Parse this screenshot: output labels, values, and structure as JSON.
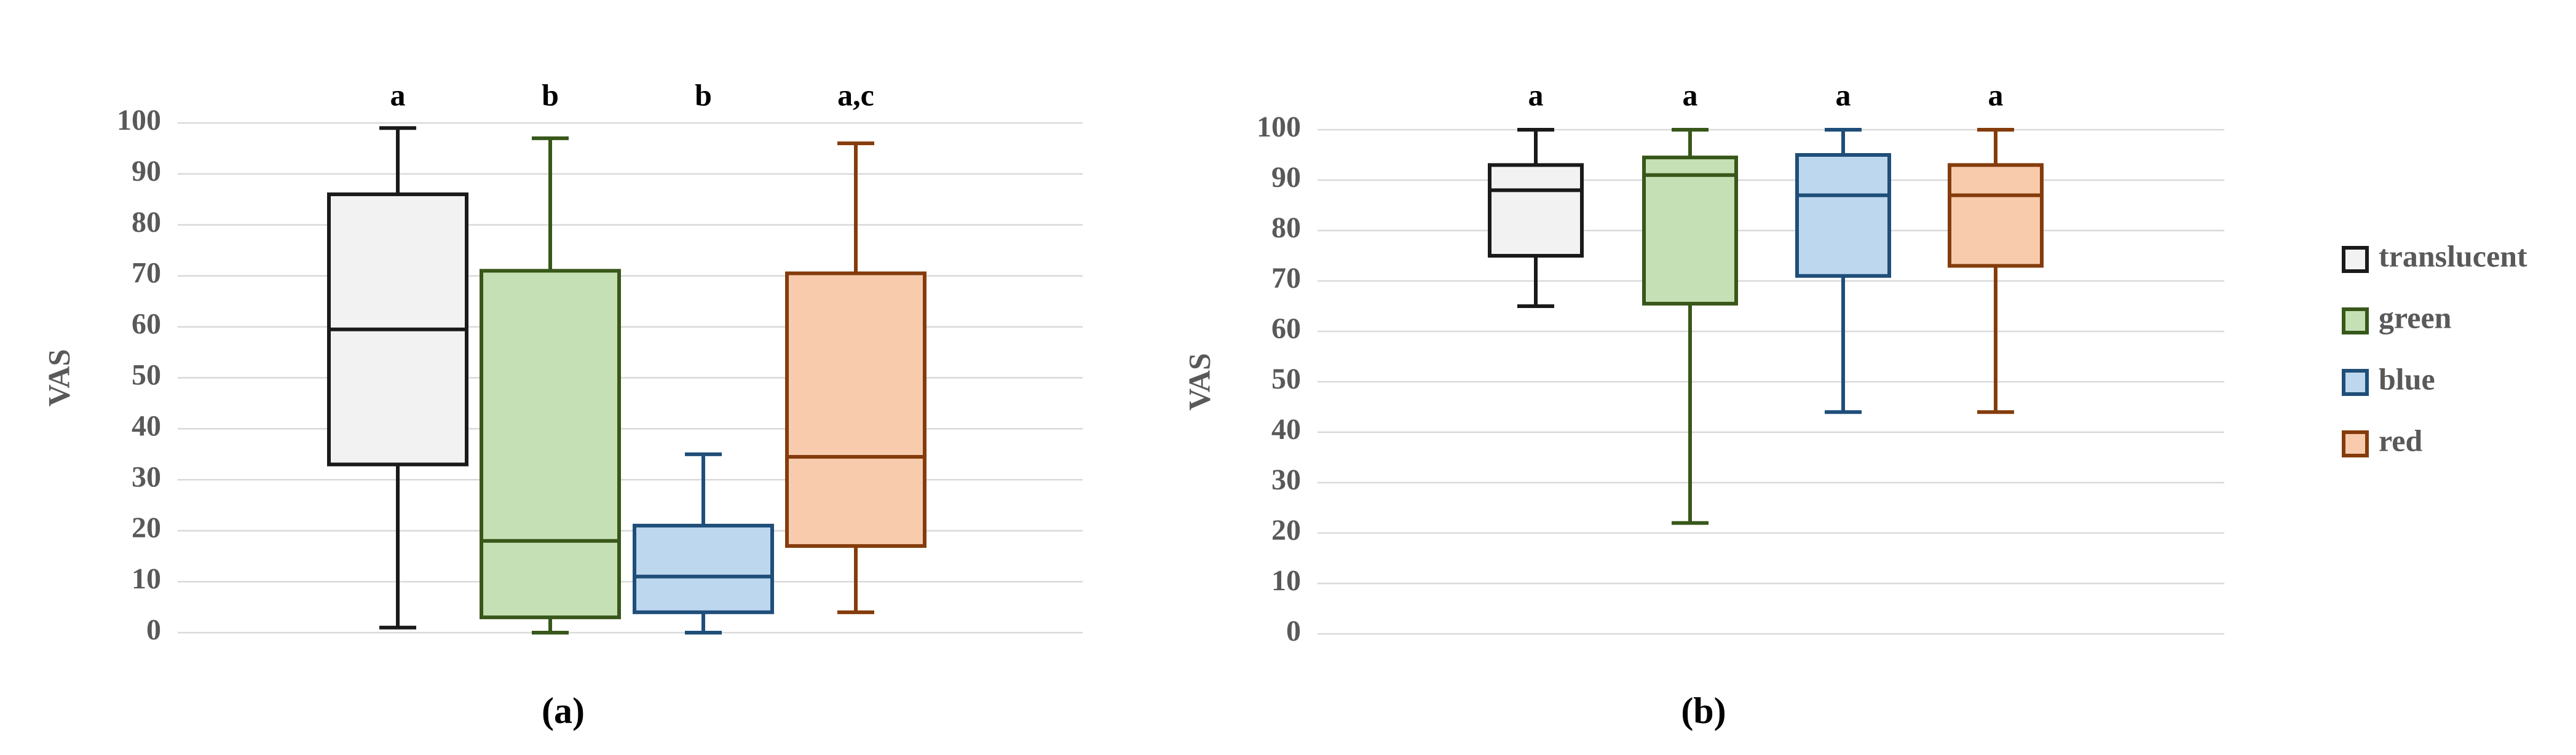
{
  "chart_data": [
    {
      "type": "box",
      "panel": "(a)",
      "ylabel": "VAS",
      "ylim": [
        0,
        100
      ],
      "yticks": [
        0,
        10,
        20,
        30,
        40,
        50,
        60,
        70,
        80,
        90,
        100
      ],
      "grid": true,
      "series": [
        {
          "color": "#1a1a1a",
          "fill": "#f2f2f2",
          "min": 1,
          "q1": 33,
          "median": 59.5,
          "q3": 86,
          "max": 99,
          "label": "a"
        },
        {
          "color": "#38571a",
          "fill": "#c5e0b4",
          "min": 0,
          "q1": 3,
          "median": 18,
          "q3": 71,
          "max": 97,
          "label": "b"
        },
        {
          "color": "#1f4e79",
          "fill": "#bdd7ee",
          "min": 0,
          "q1": 4,
          "median": 11,
          "q3": 21,
          "max": 35,
          "label": "b"
        },
        {
          "color": "#843c0c",
          "fill": "#f8cbad",
          "min": 4,
          "q1": 17,
          "median": 34.5,
          "q3": 70.5,
          "max": 96,
          "label": "a,c"
        }
      ]
    },
    {
      "type": "box",
      "panel": "(b)",
      "ylabel": "VAS",
      "ylim": [
        0,
        100
      ],
      "yticks": [
        0,
        10,
        20,
        30,
        40,
        50,
        60,
        70,
        80,
        90,
        100
      ],
      "grid": true,
      "legend": "right",
      "series": [
        {
          "name": "translucent",
          "color": "#1a1a1a",
          "fill": "#f2f2f2",
          "min": 65,
          "q1": 75,
          "median": 88,
          "q3": 93,
          "max": 100,
          "label": "a"
        },
        {
          "name": "green",
          "color": "#38571a",
          "fill": "#c5e0b4",
          "min": 22,
          "q1": 65.5,
          "median": 91,
          "q3": 94.5,
          "max": 100,
          "label": "a"
        },
        {
          "name": "blue",
          "color": "#1f4e79",
          "fill": "#bdd7ee",
          "min": 44,
          "q1": 71,
          "median": 87,
          "q3": 95,
          "max": 100,
          "label": "a"
        },
        {
          "name": "red",
          "color": "#843c0c",
          "fill": "#f8cbad",
          "min": 44,
          "q1": 73,
          "median": 87,
          "q3": 93,
          "max": 100,
          "label": "a"
        }
      ]
    }
  ]
}
